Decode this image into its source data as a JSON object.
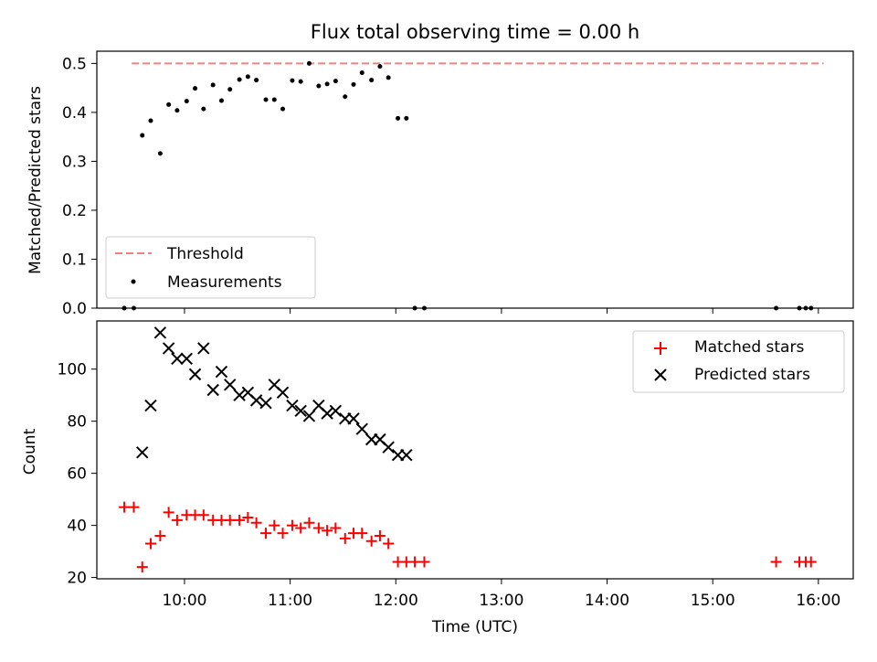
{
  "title": "Flux total observing time = 0.00 h",
  "colors": {
    "threshold": "#f08080",
    "matched": "#ff0000",
    "predicted": "#000000",
    "measurements": "#000000"
  },
  "chart_data": [
    {
      "type": "scatter",
      "ylabel": "Matched/Predicted stars",
      "xlim": [
        9.17,
        16.33
      ],
      "ylim": [
        0,
        0.525
      ],
      "yticks": [
        0.0,
        0.1,
        0.2,
        0.3,
        0.4,
        0.5
      ],
      "ytick_labels": [
        "0.0",
        "0.1",
        "0.2",
        "0.3",
        "0.4",
        "0.5"
      ],
      "legend": {
        "position": "lower-left",
        "entries": [
          "Threshold",
          "Measurements"
        ]
      },
      "threshold": {
        "name": "Threshold",
        "y": 0.5,
        "x_range": [
          9.5,
          16.05
        ]
      },
      "series": [
        {
          "name": "Measurements",
          "marker": "dot",
          "x": [
            9.43,
            9.52,
            9.6,
            9.68,
            9.77,
            9.85,
            9.93,
            10.02,
            10.1,
            10.18,
            10.27,
            10.35,
            10.43,
            10.52,
            10.6,
            10.68,
            10.77,
            10.85,
            10.93,
            11.02,
            11.1,
            11.18,
            11.27,
            11.35,
            11.43,
            11.52,
            11.6,
            11.68,
            11.77,
            11.85,
            11.93,
            12.02,
            12.1,
            12.18,
            12.27,
            15.6,
            15.82,
            15.88,
            15.93
          ],
          "y": [
            0.0,
            0.0,
            0.353,
            0.383,
            0.316,
            0.416,
            0.404,
            0.423,
            0.449,
            0.407,
            0.456,
            0.424,
            0.447,
            0.467,
            0.473,
            0.466,
            0.426,
            0.426,
            0.407,
            0.465,
            0.463,
            0.5,
            0.454,
            0.458,
            0.464,
            0.432,
            0.457,
            0.481,
            0.466,
            0.494,
            0.471,
            0.388,
            0.388,
            0.0,
            0.0,
            0.0,
            0.0,
            0.0,
            0.0
          ]
        }
      ]
    },
    {
      "type": "scatter",
      "xlabel": "Time (UTC)",
      "ylabel": "Count",
      "xlim": [
        9.17,
        16.33
      ],
      "ylim": [
        19.5,
        118.5
      ],
      "xticks": [
        10,
        11,
        12,
        13,
        14,
        15,
        16
      ],
      "xtick_labels": [
        "10:00",
        "11:00",
        "12:00",
        "13:00",
        "14:00",
        "15:00",
        "16:00"
      ],
      "yticks": [
        20,
        40,
        60,
        80,
        100
      ],
      "ytick_labels": [
        "20",
        "40",
        "60",
        "80",
        "100"
      ],
      "legend": {
        "position": "upper-right",
        "entries": [
          "Matched stars",
          "Predicted stars"
        ]
      },
      "series": [
        {
          "name": "Matched stars",
          "marker": "plus",
          "x": [
            9.43,
            9.52,
            9.6,
            9.68,
            9.77,
            9.85,
            9.93,
            10.02,
            10.1,
            10.18,
            10.27,
            10.35,
            10.43,
            10.52,
            10.6,
            10.68,
            10.77,
            10.85,
            10.93,
            11.02,
            11.1,
            11.18,
            11.27,
            11.35,
            11.43,
            11.52,
            11.6,
            11.68,
            11.77,
            11.85,
            11.93,
            12.02,
            12.1,
            12.18,
            12.27,
            15.6,
            15.82,
            15.88,
            15.93
          ],
          "y": [
            47,
            47,
            24,
            33,
            36,
            45,
            42,
            44,
            44,
            44,
            42,
            42,
            42,
            42,
            43,
            41,
            37,
            40,
            37,
            40,
            39,
            41,
            39,
            38,
            39,
            35,
            37,
            37,
            34,
            36,
            33,
            26,
            26,
            26,
            26,
            26,
            26,
            26,
            26
          ]
        },
        {
          "name": "Predicted stars",
          "marker": "x",
          "x": [
            9.6,
            9.68,
            9.77,
            9.85,
            9.93,
            10.02,
            10.1,
            10.18,
            10.27,
            10.35,
            10.43,
            10.52,
            10.6,
            10.68,
            10.77,
            10.85,
            10.93,
            11.02,
            11.1,
            11.18,
            11.27,
            11.35,
            11.43,
            11.52,
            11.6,
            11.68,
            11.77,
            11.85,
            11.93,
            12.02,
            12.1
          ],
          "y": [
            68,
            86,
            114,
            108,
            104,
            104,
            98,
            108,
            92,
            99,
            94,
            90,
            91,
            88,
            87,
            94,
            91,
            86,
            84,
            82,
            86,
            83,
            84,
            81,
            81,
            77,
            73,
            73,
            70,
            67,
            67
          ]
        }
      ]
    }
  ]
}
